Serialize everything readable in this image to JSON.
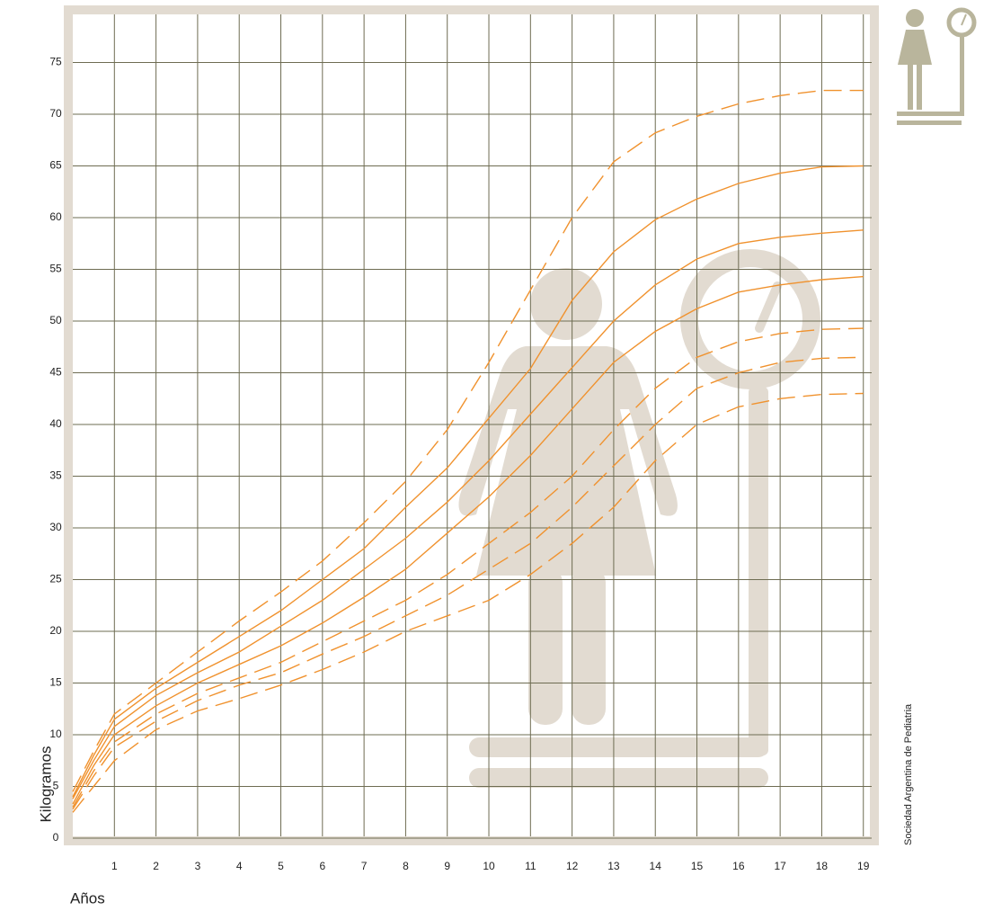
{
  "chart_data": {
    "type": "line",
    "x_label": "Años",
    "y_label": "Kilogramos",
    "source": "Sociedad Argentina de Pediatria",
    "x": [
      0,
      0.5,
      1,
      2,
      3,
      4,
      5,
      6,
      7,
      8,
      9,
      10,
      11,
      12,
      13,
      14,
      15,
      16,
      17,
      18,
      19
    ],
    "series": [
      {
        "color": "#f0922e",
        "dashed": true,
        "values": [
          4.5,
          8.4,
          12,
          15,
          18,
          21,
          23.8,
          26.8,
          30.5,
          34.5,
          39.5,
          46,
          53,
          60,
          65.4,
          68.2,
          69.8,
          71,
          71.8,
          72.3,
          72.3
        ]
      },
      {
        "color": "#f0922e",
        "dashed": false,
        "values": [
          4,
          8,
          11.5,
          14.5,
          17,
          19.5,
          22,
          25,
          28,
          32,
          35.8,
          40.6,
          45.4,
          52,
          56.7,
          59.8,
          61.8,
          63.3,
          64.3,
          64.9,
          65
        ]
      },
      {
        "color": "#f0922e",
        "dashed": false,
        "values": [
          3.8,
          7.5,
          10.8,
          13.8,
          16,
          18,
          20.5,
          23,
          26,
          29,
          32.5,
          36.5,
          41,
          45.5,
          50,
          53.5,
          56,
          57.5,
          58.1,
          58.5,
          58.8
        ]
      },
      {
        "color": "#f0922e",
        "dashed": false,
        "values": [
          3.3,
          7,
          10,
          12.8,
          15,
          16.8,
          18.6,
          20.8,
          23.3,
          26,
          29.5,
          33,
          37,
          41.5,
          46,
          49,
          51.2,
          52.8,
          53.5,
          54,
          54.3
        ]
      },
      {
        "color": "#f0922e",
        "dashed": true,
        "values": [
          3,
          6.5,
          9.3,
          12,
          14,
          15.5,
          17,
          19,
          21,
          23,
          25.5,
          28.5,
          31.5,
          35,
          39.5,
          43.5,
          46.5,
          48,
          48.8,
          49.2,
          49.3
        ]
      },
      {
        "color": "#f0922e",
        "dashed": true,
        "values": [
          2.8,
          6,
          8.8,
          11.3,
          13.3,
          14.8,
          16,
          17.8,
          19.5,
          21.5,
          23.5,
          26,
          28.5,
          32,
          36,
          40,
          43.5,
          45,
          46,
          46.4,
          46.5
        ]
      },
      {
        "color": "#f0922e",
        "dashed": true,
        "values": [
          2.5,
          5,
          7.5,
          10.5,
          12.3,
          13.5,
          14.8,
          16.3,
          18,
          20,
          21.5,
          23,
          25.5,
          28.5,
          32,
          36.5,
          40,
          41.7,
          42.5,
          42.9,
          43
        ]
      }
    ],
    "xlim": [
      0,
      19.2
    ],
    "ylim": [
      0,
      80
    ],
    "xticks": [
      1,
      2,
      3,
      4,
      5,
      6,
      7,
      8,
      9,
      10,
      11,
      12,
      13,
      14,
      15,
      16,
      17,
      18,
      19
    ],
    "yticks": [
      0,
      5,
      10,
      15,
      20,
      25,
      30,
      35,
      40,
      45,
      50,
      55,
      60,
      65,
      70,
      75
    ],
    "grid": true
  }
}
